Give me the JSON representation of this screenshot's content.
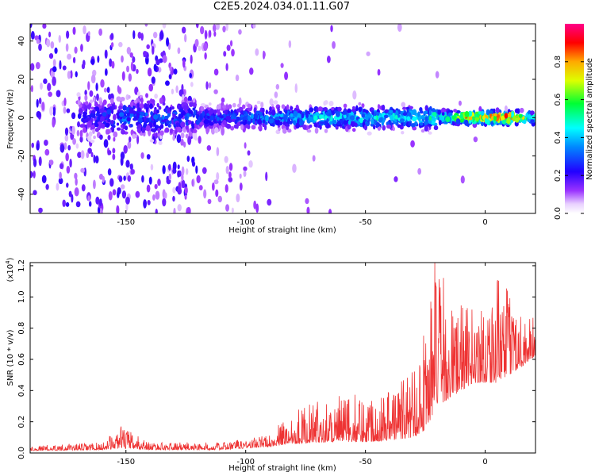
{
  "title": "C2E5.2024.034.01.11.G07",
  "colors": {
    "spectrogram_scatter": "#8a2be2",
    "snr_line": "#ee3333",
    "axis": "#000000"
  },
  "chart_data": [
    {
      "type": "heatmap",
      "xlabel": "Height of straight line (km)",
      "ylabel": "Frequency (Hz)",
      "xlim": [
        -190,
        21
      ],
      "ylim": [
        -50,
        49
      ],
      "xticks": [
        -150,
        -100,
        -50,
        0
      ],
      "yticks": [
        -40,
        -20,
        0,
        20,
        40
      ],
      "grid": false,
      "colorbar": {
        "label": "Normalized spectral amplitude",
        "range": [
          0,
          1
        ],
        "ticks": [
          "0.0",
          "0.2",
          "0.4",
          "0.6",
          "0.8"
        ],
        "colormap": "rainbow (white-purple-blue-cyan-green-yellow-red-magenta)"
      },
      "band": {
        "description": "dominant ridge near 0 Hz",
        "center_hz": 0,
        "amplitude_profile": [
          {
            "x": -165,
            "amp": 0.25
          },
          {
            "x": -150,
            "amp": 0.35
          },
          {
            "x": -120,
            "amp": 0.3
          },
          {
            "x": -100,
            "amp": 0.35
          },
          {
            "x": -80,
            "amp": 0.45
          },
          {
            "x": -50,
            "amp": 0.5
          },
          {
            "x": -30,
            "amp": 0.5
          },
          {
            "x": -15,
            "amp": 0.6
          },
          {
            "x": -5,
            "amp": 0.95
          },
          {
            "x": 10,
            "amp": 0.95
          },
          {
            "x": 20,
            "amp": 0.6
          }
        ]
      }
    },
    {
      "type": "line",
      "xlabel": "Height of straight line (km)",
      "ylabel": "SNR (10 * v/v)",
      "yscale_label": "(x10",
      "yscale_exp": "4",
      "yscale_close": ")",
      "xlim": [
        -190,
        21
      ],
      "ylim": [
        0,
        1.22
      ],
      "xticks": [
        -150,
        -100,
        -50,
        0
      ],
      "yticks": [
        "0.0",
        "0.2",
        "0.4",
        "0.6",
        "0.8",
        "1.0",
        "1.2"
      ],
      "grid": false,
      "envelope": [
        {
          "x": -190,
          "base": 0.015,
          "spread": 0.02
        },
        {
          "x": -160,
          "base": 0.02,
          "spread": 0.03
        },
        {
          "x": -152,
          "base": 0.03,
          "spread": 0.09
        },
        {
          "x": -140,
          "base": 0.02,
          "spread": 0.03
        },
        {
          "x": -110,
          "base": 0.02,
          "spread": 0.03
        },
        {
          "x": -90,
          "base": 0.04,
          "spread": 0.05
        },
        {
          "x": -80,
          "base": 0.06,
          "spread": 0.14
        },
        {
          "x": -65,
          "base": 0.07,
          "spread": 0.18
        },
        {
          "x": -50,
          "base": 0.07,
          "spread": 0.2
        },
        {
          "x": -40,
          "base": 0.08,
          "spread": 0.22
        },
        {
          "x": -30,
          "base": 0.1,
          "spread": 0.3
        },
        {
          "x": -25,
          "base": 0.15,
          "spread": 0.45
        },
        {
          "x": -20,
          "base": 0.3,
          "spread": 0.6
        },
        {
          "x": -15,
          "base": 0.35,
          "spread": 0.4
        },
        {
          "x": -5,
          "base": 0.45,
          "spread": 0.3
        },
        {
          "x": 5,
          "base": 0.45,
          "spread": 0.42
        },
        {
          "x": 15,
          "base": 0.55,
          "spread": 0.25
        },
        {
          "x": 21,
          "base": 0.62,
          "spread": 0.15
        }
      ],
      "peak": {
        "x": -21,
        "y": 1.22
      }
    }
  ]
}
